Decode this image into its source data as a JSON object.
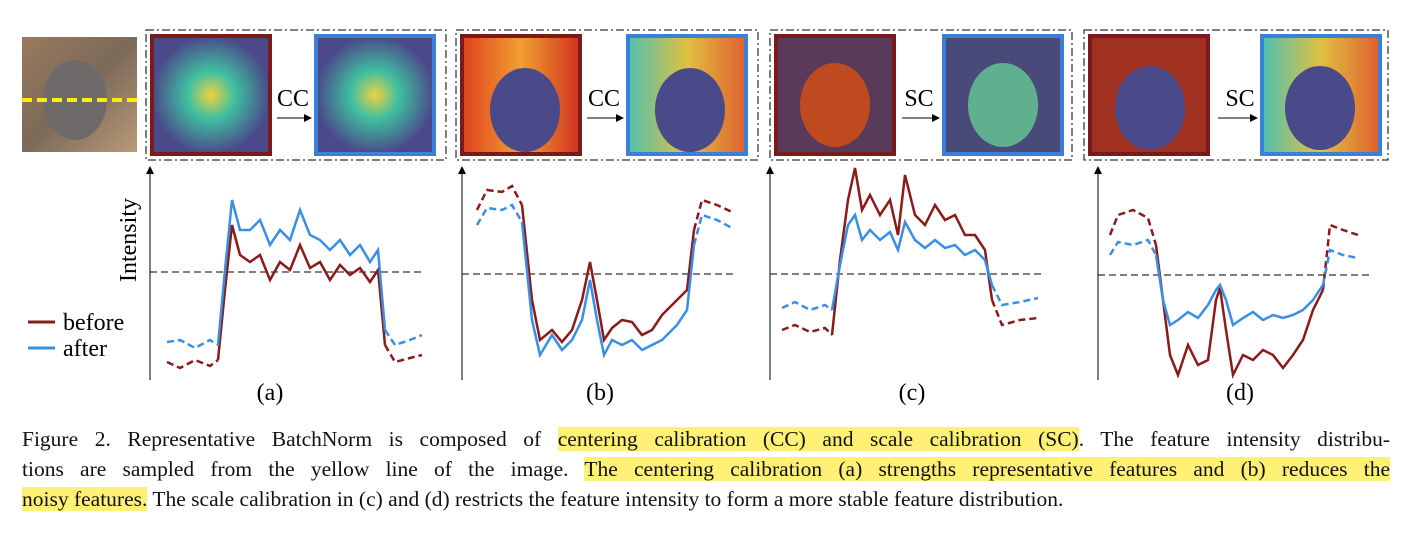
{
  "panels": [
    {
      "op": "CC",
      "label": "(a)"
    },
    {
      "op": "CC",
      "label": "(b)"
    },
    {
      "op": "SC",
      "label": "(c)"
    },
    {
      "op": "SC",
      "label": "(d)"
    }
  ],
  "plot_legend": {
    "y_axis": "Intensity",
    "before": "before",
    "after": "after",
    "before_color": "#8b1a1a",
    "after_color": "#3a8ee6"
  },
  "caption": {
    "lines": [
      [
        {
          "text": "Figure 2. Representative BatchNorm is composed of "
        },
        {
          "text": "centering calibration (CC) and scale calibration (SC)",
          "highlight": true
        },
        {
          "text": ". The feature intensity distribu-"
        }
      ],
      [
        {
          "text": "tions are sampled from the yellow line of the image. "
        },
        {
          "text": "The centering calibration (a) strengths representative features and (b) reduces the",
          "highlight": true
        }
      ],
      [
        {
          "text": "noisy features.",
          "highlight": true
        },
        {
          "text": " The scale calibration in (c) and (d) restricts the feature intensity to form a more stable feature distribution."
        }
      ]
    ]
  }
}
